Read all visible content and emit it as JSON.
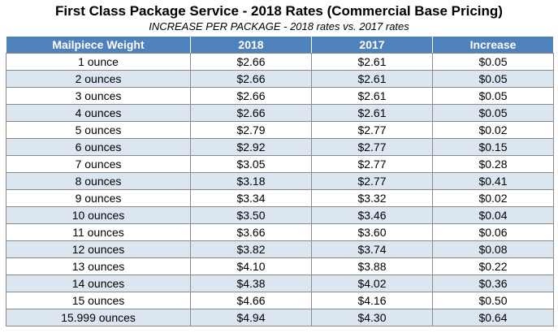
{
  "header": {
    "title": "First Class Package Service - 2018 Rates (Commercial Base Pricing)",
    "subtitle": "INCREASE PER PACKAGE - 2018 rates vs. 2017 rates"
  },
  "table": {
    "columns": [
      "Mailpiece Weight",
      "2018",
      "2017",
      "Increase"
    ],
    "rows": [
      [
        "1 ounce",
        "$2.66",
        "$2.61",
        "$0.05"
      ],
      [
        "2 ounces",
        "$2.66",
        "$2.61",
        "$0.05"
      ],
      [
        "3 ounces",
        "$2.66",
        "$2.61",
        "$0.05"
      ],
      [
        "4 ounces",
        "$2.66",
        "$2.61",
        "$0.05"
      ],
      [
        "5 ounces",
        "$2.79",
        "$2.77",
        "$0.02"
      ],
      [
        "6 ounces",
        "$2.92",
        "$2.77",
        "$0.15"
      ],
      [
        "7 ounces",
        "$3.05",
        "$2.77",
        "$0.28"
      ],
      [
        "8 ounces",
        "$3.18",
        "$2.77",
        "$0.41"
      ],
      [
        "9 ounces",
        "$3.34",
        "$3.32",
        "$0.02"
      ],
      [
        "10 ounces",
        "$3.50",
        "$3.46",
        "$0.04"
      ],
      [
        "11 ounces",
        "$3.66",
        "$3.60",
        "$0.06"
      ],
      [
        "12 ounces",
        "$3.82",
        "$3.74",
        "$0.08"
      ],
      [
        "13 ounces",
        "$4.10",
        "$3.88",
        "$0.22"
      ],
      [
        "14 ounces",
        "$4.38",
        "$4.02",
        "$0.36"
      ],
      [
        "15 ounces",
        "$4.66",
        "$4.16",
        "$0.50"
      ],
      [
        "15.999 ounces",
        "$4.94",
        "$4.30",
        "$0.64"
      ]
    ]
  },
  "colors": {
    "header_bg": "#4f81bd",
    "header_text": "#ffffff",
    "band_row": "#dce6f1",
    "plain_row": "#ffffff"
  }
}
